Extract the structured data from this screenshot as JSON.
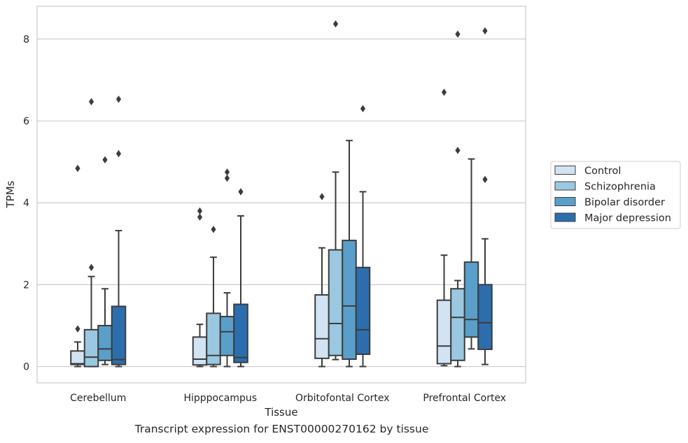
{
  "caption": "Transcript expression for ENST00000270162 by tissue",
  "chart_data": {
    "type": "box",
    "title": "",
    "xlabel": "Tissue",
    "ylabel": "TPMs",
    "ylim": [
      -0.4,
      8.8
    ],
    "yticks": [
      0,
      2,
      4,
      6,
      8
    ],
    "grid": "horizontal",
    "legend_position": "right",
    "categories": [
      "Cerebellum",
      "Hipppocampus",
      "Orbitofontal Cortex",
      "Prefrontal Cortex"
    ],
    "series": [
      {
        "name": "Control",
        "color": "#d2e3f3",
        "boxes": [
          {
            "whislo": 0.0,
            "q1": 0.05,
            "med": 0.07,
            "q3": 0.38,
            "whishi": 0.6,
            "fliers": [
              0.92,
              4.84
            ]
          },
          {
            "whislo": 0.0,
            "q1": 0.04,
            "med": 0.18,
            "q3": 0.72,
            "whishi": 1.03,
            "fliers": [
              3.65,
              3.8
            ]
          },
          {
            "whislo": 0.0,
            "q1": 0.2,
            "med": 0.68,
            "q3": 1.75,
            "whishi": 2.9,
            "fliers": [
              4.15
            ]
          },
          {
            "whislo": 0.02,
            "q1": 0.07,
            "med": 0.5,
            "q3": 1.62,
            "whishi": 2.72,
            "fliers": [
              6.7
            ]
          }
        ]
      },
      {
        "name": "Schizophrenia",
        "color": "#9ac8e0",
        "boxes": [
          {
            "whislo": 0.0,
            "q1": 0.0,
            "med": 0.23,
            "q3": 0.9,
            "whishi": 2.2,
            "fliers": [
              2.42,
              6.47
            ]
          },
          {
            "whislo": 0.0,
            "q1": 0.05,
            "med": 0.27,
            "q3": 1.3,
            "whishi": 2.67,
            "fliers": [
              3.35
            ]
          },
          {
            "whislo": 0.17,
            "q1": 0.27,
            "med": 1.05,
            "q3": 2.85,
            "whishi": 4.75,
            "fliers": [
              8.37
            ]
          },
          {
            "whislo": 0.0,
            "q1": 0.15,
            "med": 1.2,
            "q3": 1.9,
            "whishi": 2.1,
            "fliers": [
              5.28,
              8.12
            ]
          }
        ]
      },
      {
        "name": "Bipolar disorder",
        "color": "#5a9fca",
        "boxes": [
          {
            "whislo": 0.05,
            "q1": 0.15,
            "med": 0.43,
            "q3": 1.0,
            "whishi": 1.9,
            "fliers": [
              5.05
            ]
          },
          {
            "whislo": 0.0,
            "q1": 0.27,
            "med": 0.85,
            "q3": 1.22,
            "whishi": 1.8,
            "fliers": [
              4.6,
              4.75
            ]
          },
          {
            "whislo": 0.0,
            "q1": 0.18,
            "med": 1.48,
            "q3": 3.08,
            "whishi": 5.52,
            "fliers": []
          },
          {
            "whislo": 0.43,
            "q1": 0.72,
            "med": 1.15,
            "q3": 2.55,
            "whishi": 5.07,
            "fliers": []
          }
        ]
      },
      {
        "name": "Major depression",
        "color": "#2c6ead",
        "boxes": [
          {
            "whislo": 0.0,
            "q1": 0.05,
            "med": 0.17,
            "q3": 1.47,
            "whishi": 3.32,
            "fliers": [
              5.2,
              6.53
            ]
          },
          {
            "whislo": 0.0,
            "q1": 0.1,
            "med": 0.22,
            "q3": 1.52,
            "whishi": 3.68,
            "fliers": [
              4.27
            ]
          },
          {
            "whislo": 0.0,
            "q1": 0.3,
            "med": 0.9,
            "q3": 2.42,
            "whishi": 4.27,
            "fliers": [
              6.3
            ]
          },
          {
            "whislo": 0.05,
            "q1": 0.42,
            "med": 1.07,
            "q3": 2.0,
            "whishi": 3.12,
            "fliers": [
              4.57,
              8.2
            ]
          }
        ]
      }
    ]
  }
}
